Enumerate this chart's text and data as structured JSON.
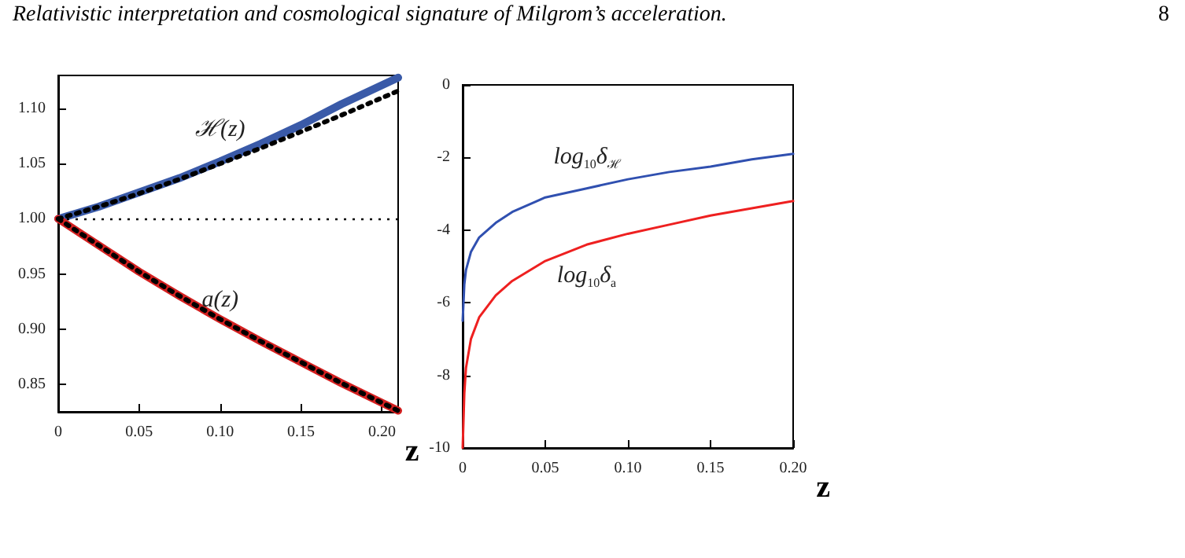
{
  "chart_data": [
    {
      "type": "line",
      "title": "Relativistic interpretation and cosmological signature of Milgrom’s acceleration.",
      "xlabel": "z",
      "annotations": [
        "8"
      ],
      "x": [
        0,
        0.025,
        0.05,
        0.075,
        0.1,
        0.125,
        0.15,
        0.175,
        0.21
      ],
      "series": [
        {
          "name": "ℋ(z)",
          "color": "#3a5aa8",
          "line_style": "solid",
          "values": [
            1.0,
            1.011,
            1.024,
            1.037,
            1.052,
            1.068,
            1.085,
            1.104,
            1.128
          ]
        },
        {
          "name": "a(z)",
          "color": "#d42020",
          "line_style": "solid",
          "values": [
            1.0,
            0.976,
            0.952,
            0.93,
            0.909,
            0.889,
            0.87,
            0.851,
            0.826
          ]
        },
        {
          "color": "#000000",
          "line_style": "dotted",
          "values": [
            1.0,
            1.011,
            1.023,
            1.036,
            1.05,
            1.064,
            1.079,
            1.094,
            1.116
          ]
        },
        {
          "color": "#000000",
          "line_style": "dotted",
          "values": [
            1.0,
            0.976,
            0.952,
            0.93,
            0.909,
            0.889,
            0.87,
            0.851,
            0.826
          ]
        }
      ],
      "ref_lines": [
        {
          "axis": "y",
          "value": 1.0,
          "color": "#000000",
          "line_style": "dotted"
        }
      ],
      "xlim": [
        0,
        0.21
      ],
      "xticks": [
        0,
        {
          "value": 0.05,
          "label": "0.05"
        },
        {
          "value": 0.1,
          "label": "0.10"
        },
        {
          "value": 0.15,
          "label": "0.15"
        },
        {
          "value": 0.2,
          "label": "0.20"
        }
      ],
      "ylim": [
        0.825,
        1.13
      ],
      "yticks": [
        {
          "value": 0.85,
          "label": "0.85"
        },
        {
          "value": 0.9,
          "label": "0.90"
        },
        {
          "value": 0.95,
          "label": "0.95"
        },
        {
          "value": 1.0,
          "label": "1.00"
        },
        {
          "value": 1.05,
          "label": "1.05"
        },
        {
          "value": 1.1,
          "label": "1.10"
        }
      ],
      "grid": false,
      "legend": false,
      "marker": "none"
    },
    {
      "type": "line",
      "xlabel": "z",
      "x": [
        0,
        0.001,
        0.002,
        0.005,
        0.01,
        0.02,
        0.03,
        0.05,
        0.075,
        0.1,
        0.125,
        0.15,
        0.175,
        0.2
      ],
      "series": [
        {
          "name": "log$_{10}$δ$_{ℋ}$",
          "color": "#3050b0",
          "values": [
            -6.5,
            -5.5,
            -5.1,
            -4.6,
            -4.2,
            -3.8,
            -3.5,
            -3.1,
            -2.85,
            -2.6,
            -2.4,
            -2.25,
            -2.05,
            -1.9
          ]
        },
        {
          "name": "log$_{10}$δ$_{a}$",
          "color": "#ee2020",
          "values": [
            -10,
            -8.5,
            -7.8,
            -7.0,
            -6.4,
            -5.8,
            -5.4,
            -4.85,
            -4.4,
            -4.1,
            -3.85,
            -3.6,
            -3.4,
            -3.2
          ]
        }
      ],
      "xlim": [
        0,
        0.2
      ],
      "xticks": [
        0,
        {
          "value": 0.05,
          "label": "0.05"
        },
        {
          "value": 0.1,
          "label": "0.10"
        },
        {
          "value": 0.15,
          "label": "0.15"
        },
        {
          "value": 0.2,
          "label": "0.20"
        }
      ],
      "ylim": [
        -10,
        0
      ],
      "yticks": [
        -10,
        -8,
        -6,
        -4,
        -2,
        0
      ],
      "grid": false,
      "legend": false,
      "marker": "none"
    }
  ]
}
